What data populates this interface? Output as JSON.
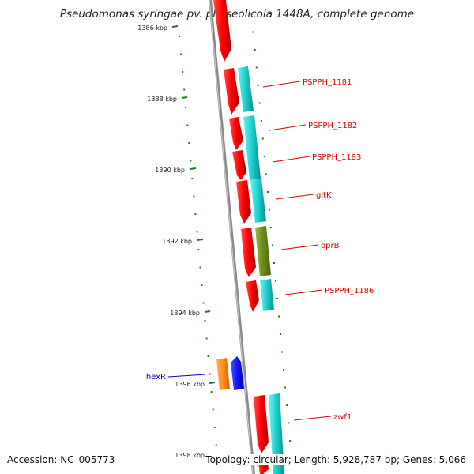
{
  "title": "Pseudomonas syringae pv. phaseolicola 1448A, complete genome",
  "footer": {
    "accession": "Accession: NC_005773",
    "summary": "Topology: circular; Length: 5,928,787 bp; Genes: 5,066"
  },
  "colors": {
    "background": "#ffffff",
    "backbone": "#8a8a8a",
    "tick": "#1a7a1a",
    "cds": "#ff1a1a",
    "gene": "#19d1d1",
    "rna": "#6e8a1e",
    "regulator_cds": "#ff8c1a",
    "regulator_gene": "#1414ff",
    "label_red": "#dd0000",
    "label_blue": "#0000cc"
  },
  "axis_labels": [
    "1386 kbp",
    "1388 kbp",
    "1390 kbp",
    "1392 kbp",
    "1394 kbp",
    "1396 kbp",
    "1398 kbp"
  ],
  "features": [
    {
      "label": "PSPPH_1181",
      "color": "#dd0000"
    },
    {
      "label": "PSPPH_1182",
      "color": "#dd0000"
    },
    {
      "label": "PSPPH_1183",
      "color": "#dd0000"
    },
    {
      "label": "gltK",
      "color": "#dd0000"
    },
    {
      "label": "oprB",
      "color": "#dd0000"
    },
    {
      "label": "PSPPH_1186",
      "color": "#dd0000"
    },
    {
      "label": "hexR",
      "color": "#0000cc"
    },
    {
      "label": "zwf1",
      "color": "#dd0000"
    }
  ]
}
